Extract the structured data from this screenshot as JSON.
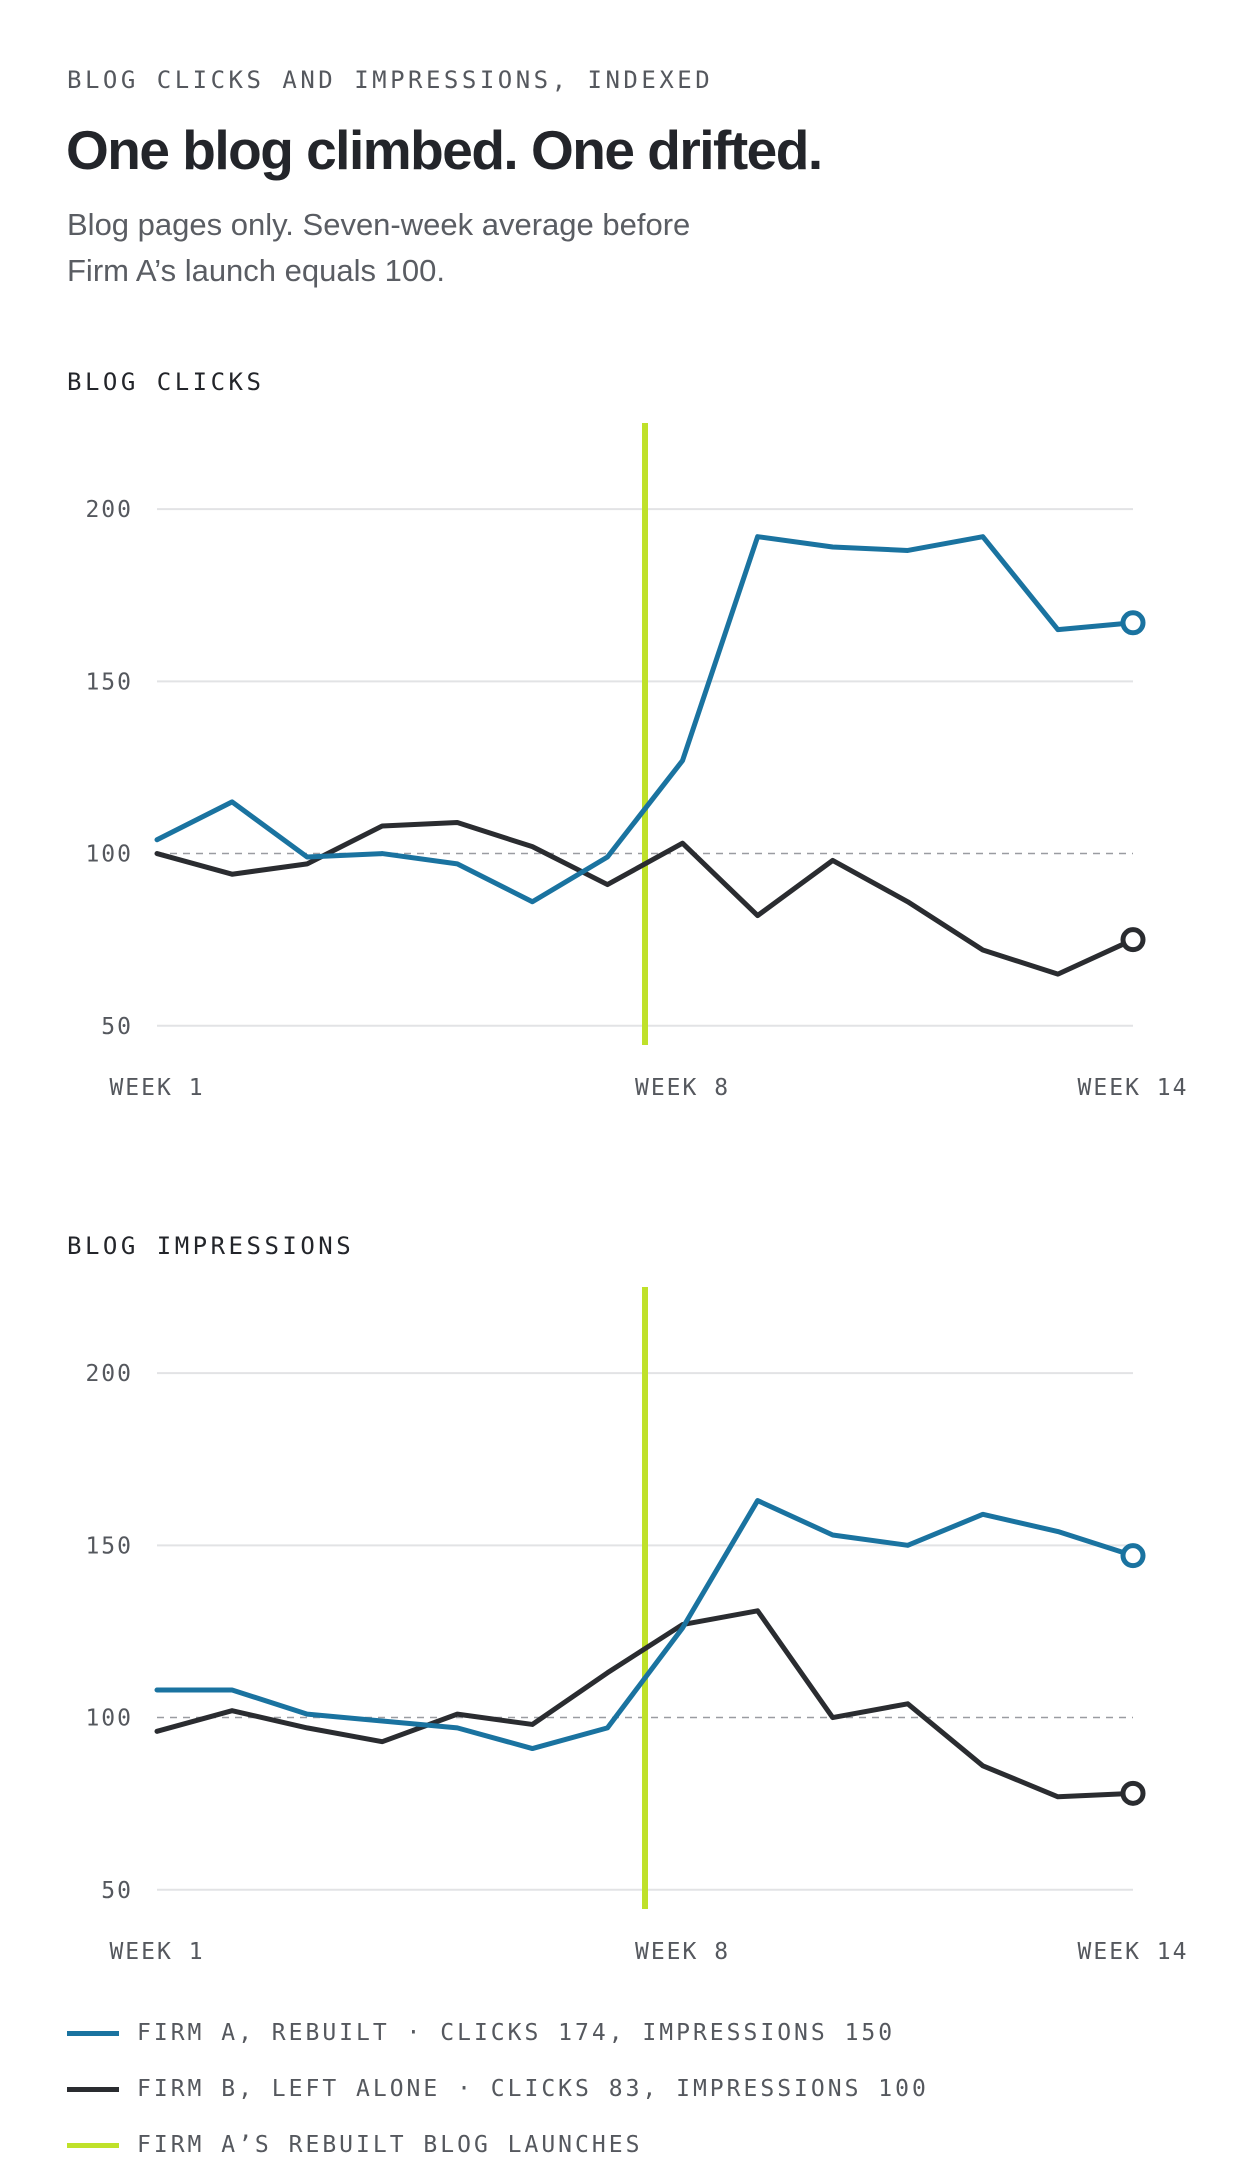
{
  "header": {
    "kicker": "BLOG CLICKS AND IMPRESSIONS, INDEXED",
    "headline": "One blog climbed. One drifted.",
    "subtitle": "Blog pages only. Seven-week average before Firm A’s launch equals 100."
  },
  "colors": {
    "firm_a": "#1a73a0",
    "firm_b": "#2a2c30",
    "launch": "#bfe12a",
    "grid": "#e2e3e5",
    "baseline": "#9a9ca1"
  },
  "chart_data": [
    {
      "type": "line",
      "title": "BLOG CLICKS",
      "x": [
        1,
        2,
        3,
        4,
        5,
        6,
        7,
        8,
        9,
        10,
        11,
        12,
        13,
        14
      ],
      "x_tick_labels": [
        {
          "week": 1,
          "label": "WEEK 1"
        },
        {
          "week": 8,
          "label": "WEEK 8"
        },
        {
          "week": 14,
          "label": "WEEK 14"
        }
      ],
      "y_ticks": [
        50,
        100,
        150,
        200
      ],
      "ylim": [
        45,
        225
      ],
      "baseline": 100,
      "launch_week": 7.5,
      "series": [
        {
          "key": "firm_a",
          "values": [
            104,
            115,
            99,
            100,
            97,
            86,
            99,
            127,
            192,
            189,
            188,
            192,
            165,
            167
          ]
        },
        {
          "key": "firm_b",
          "values": [
            100,
            94,
            97,
            108,
            109,
            102,
            91,
            103,
            82,
            98,
            86,
            72,
            65,
            75
          ]
        }
      ]
    },
    {
      "type": "line",
      "title": "BLOG IMPRESSIONS",
      "x": [
        1,
        2,
        3,
        4,
        5,
        6,
        7,
        8,
        9,
        10,
        11,
        12,
        13,
        14
      ],
      "x_tick_labels": [
        {
          "week": 1,
          "label": "WEEK 1"
        },
        {
          "week": 8,
          "label": "WEEK 8"
        },
        {
          "week": 14,
          "label": "WEEK 14"
        }
      ],
      "y_ticks": [
        50,
        100,
        150,
        200
      ],
      "ylim": [
        45,
        225
      ],
      "baseline": 100,
      "launch_week": 7.5,
      "series": [
        {
          "key": "firm_a",
          "values": [
            108,
            108,
            101,
            99,
            97,
            91,
            97,
            126,
            163,
            153,
            150,
            159,
            154,
            147
          ]
        },
        {
          "key": "firm_b",
          "values": [
            96,
            102,
            97,
            93,
            101,
            98,
            113,
            127,
            131,
            100,
            104,
            86,
            77,
            78
          ]
        }
      ]
    }
  ],
  "legend": [
    {
      "key": "firm_a",
      "label": "FIRM A, REBUILT · CLICKS 174, IMPRESSIONS 150"
    },
    {
      "key": "firm_b",
      "label": "FIRM B, LEFT ALONE · CLICKS 83, IMPRESSIONS 100"
    },
    {
      "key": "launch",
      "label": "FIRM A’S REBUILT BLOG LAUNCHES"
    }
  ]
}
